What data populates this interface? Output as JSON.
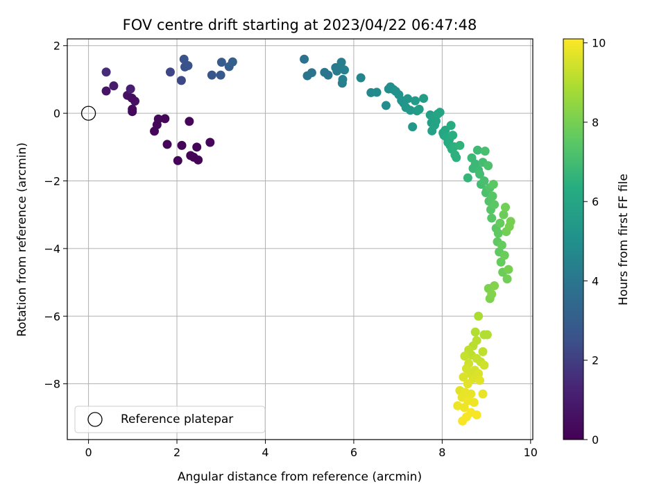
{
  "chart_data": {
    "type": "scatter",
    "title": "FOV centre drift starting at 2023/04/22 06:47:48",
    "xlabel": "Angular distance from reference (arcmin)",
    "ylabel": "Rotation from reference (arcmin)",
    "xlim": [
      -0.48,
      10.05
    ],
    "ylim": [
      -9.65,
      2.2
    ],
    "xticks": [
      "0",
      "2",
      "4",
      "6",
      "8",
      "10"
    ],
    "yticks": [
      "−8",
      "−6",
      "−4",
      "−2",
      "0",
      "2"
    ],
    "grid": true,
    "colormap": "viridis",
    "colorbar": {
      "label": "Hours from first FF file",
      "range": [
        0,
        10.1
      ],
      "ticks": [
        "0",
        "2",
        "4",
        "6",
        "8",
        "10"
      ]
    },
    "legend": {
      "position": "lower-left",
      "entries": [
        "Reference platepar"
      ]
    },
    "reference_point": {
      "x": 0.0,
      "y": 0.0
    },
    "points": [
      [
        0.4,
        1.22,
        1.5
      ],
      [
        0.4,
        0.66,
        0.7
      ],
      [
        0.57,
        0.81,
        1.0
      ],
      [
        0.88,
        0.53,
        0.6
      ],
      [
        0.95,
        0.72,
        1.1
      ],
      [
        1.05,
        0.36,
        0.6
      ],
      [
        0.98,
        0.45,
        0.5
      ],
      [
        0.99,
        0.12,
        0.4
      ],
      [
        0.99,
        0.05,
        0.3
      ],
      [
        1.49,
        -0.53,
        0.2
      ],
      [
        1.55,
        -0.34,
        0.3
      ],
      [
        1.58,
        -0.17,
        0.3
      ],
      [
        1.73,
        -0.16,
        0.2
      ],
      [
        1.78,
        -0.92,
        0.1
      ],
      [
        2.02,
        -1.4,
        0.1
      ],
      [
        2.11,
        -0.95,
        0.1
      ],
      [
        2.28,
        -0.24,
        0.2
      ],
      [
        2.31,
        -1.25,
        0.1
      ],
      [
        2.38,
        -1.3,
        0.1
      ],
      [
        2.45,
        -1.0,
        0.1
      ],
      [
        2.48,
        -1.38,
        0.1
      ],
      [
        2.75,
        -0.86,
        0.2
      ],
      [
        1.85,
        1.22,
        2.2
      ],
      [
        2.1,
        0.97,
        2.3
      ],
      [
        2.16,
        1.6,
        2.6
      ],
      [
        2.18,
        1.37,
        2.5
      ],
      [
        2.25,
        1.41,
        2.6
      ],
      [
        2.79,
        1.13,
        2.7
      ],
      [
        2.99,
        1.13,
        2.8
      ],
      [
        3.01,
        1.51,
        2.9
      ],
      [
        3.18,
        1.38,
        3.0
      ],
      [
        3.26,
        1.52,
        3.1
      ],
      [
        4.88,
        1.6,
        3.8
      ],
      [
        4.95,
        1.11,
        3.9
      ],
      [
        5.05,
        1.2,
        3.9
      ],
      [
        5.34,
        1.21,
        4.0
      ],
      [
        5.42,
        1.13,
        4.0
      ],
      [
        5.59,
        1.35,
        4.1
      ],
      [
        5.62,
        1.25,
        4.2
      ],
      [
        5.7,
        1.4,
        4.2
      ],
      [
        5.72,
        1.51,
        4.3
      ],
      [
        5.74,
        0.89,
        4.3
      ],
      [
        5.75,
        1.0,
        4.4
      ],
      [
        5.79,
        1.28,
        4.4
      ],
      [
        6.16,
        1.05,
        4.6
      ],
      [
        6.39,
        0.61,
        4.7
      ],
      [
        6.52,
        0.62,
        4.8
      ],
      [
        6.73,
        0.23,
        4.9
      ],
      [
        6.79,
        0.72,
        4.9
      ],
      [
        6.83,
        0.78,
        5.0
      ],
      [
        6.9,
        0.7,
        5.0
      ],
      [
        6.95,
        0.65,
        5.1
      ],
      [
        7.02,
        0.55,
        5.1
      ],
      [
        7.08,
        0.38,
        5.2
      ],
      [
        7.13,
        0.3,
        5.2
      ],
      [
        7.18,
        0.17,
        5.3
      ],
      [
        7.22,
        0.43,
        5.3
      ],
      [
        7.28,
        0.09,
        5.4
      ],
      [
        7.33,
        -0.4,
        5.4
      ],
      [
        7.39,
        0.37,
        5.5
      ],
      [
        7.43,
        0.07,
        5.5
      ],
      [
        7.48,
        0.12,
        5.6
      ],
      [
        7.58,
        0.44,
        5.6
      ],
      [
        7.73,
        -0.05,
        5.7
      ],
      [
        7.76,
        -0.28,
        5.7
      ],
      [
        7.77,
        -0.52,
        5.8
      ],
      [
        7.8,
        -0.12,
        5.8
      ],
      [
        7.83,
        -0.35,
        5.9
      ],
      [
        7.86,
        -0.23,
        5.9
      ],
      [
        7.9,
        -0.02,
        6.0
      ],
      [
        7.95,
        0.03,
        6.0
      ],
      [
        8.02,
        -0.58,
        6.1
      ],
      [
        8.04,
        -0.65,
        6.1
      ],
      [
        8.07,
        -0.5,
        6.1
      ],
      [
        8.1,
        -0.71,
        6.2
      ],
      [
        8.13,
        -0.86,
        6.2
      ],
      [
        8.16,
        -0.78,
        6.3
      ],
      [
        8.18,
        -0.95,
        6.3
      ],
      [
        8.2,
        -0.36,
        6.3
      ],
      [
        8.22,
        -1.06,
        6.4
      ],
      [
        8.24,
        -0.65,
        6.4
      ],
      [
        8.27,
        -0.99,
        6.5
      ],
      [
        8.29,
        -1.23,
        6.5
      ],
      [
        8.32,
        -1.31,
        6.5
      ],
      [
        8.4,
        -0.95,
        6.6
      ],
      [
        8.58,
        -1.91,
        6.7
      ],
      [
        8.67,
        -1.32,
        6.8
      ],
      [
        8.7,
        -1.63,
        6.8
      ],
      [
        8.75,
        -1.5,
        6.8
      ],
      [
        8.8,
        -1.09,
        6.9
      ],
      [
        8.82,
        -1.68,
        6.9
      ],
      [
        8.85,
        -1.8,
        7.0
      ],
      [
        8.88,
        -2.1,
        7.0
      ],
      [
        8.92,
        -1.45,
        7.0
      ],
      [
        8.95,
        -2.0,
        7.1
      ],
      [
        8.97,
        -1.12,
        7.1
      ],
      [
        8.99,
        -2.35,
        7.2
      ],
      [
        9.01,
        -2.27,
        7.2
      ],
      [
        9.04,
        -1.55,
        7.2
      ],
      [
        9.06,
        -2.6,
        7.3
      ],
      [
        9.08,
        -2.2,
        7.3
      ],
      [
        9.1,
        -2.85,
        7.4
      ],
      [
        9.12,
        -3.1,
        7.4
      ],
      [
        9.14,
        -2.45,
        7.4
      ],
      [
        9.16,
        -2.1,
        7.5
      ],
      [
        9.18,
        -2.7,
        7.5
      ],
      [
        9.22,
        -3.4,
        7.5
      ],
      [
        9.25,
        -3.8,
        7.6
      ],
      [
        9.27,
        -3.55,
        7.6
      ],
      [
        9.29,
        -4.1,
        7.6
      ],
      [
        9.31,
        -3.25,
        7.7
      ],
      [
        9.33,
        -4.4,
        7.7
      ],
      [
        9.35,
        -3.9,
        7.7
      ],
      [
        9.37,
        -4.7,
        7.8
      ],
      [
        9.39,
        -3.0,
        7.8
      ],
      [
        9.41,
        -4.2,
        7.8
      ],
      [
        9.43,
        -2.78,
        7.9
      ],
      [
        9.45,
        -3.5,
        7.9
      ],
      [
        9.47,
        -4.9,
        7.9
      ],
      [
        9.5,
        -4.62,
        8.0
      ],
      [
        9.52,
        -3.35,
        8.0
      ],
      [
        9.55,
        -3.2,
        8.0
      ],
      [
        9.05,
        -5.18,
        8.1
      ],
      [
        9.08,
        -5.48,
        8.1
      ],
      [
        9.12,
        -5.35,
        8.2
      ],
      [
        9.18,
        -5.1,
        8.2
      ],
      [
        8.82,
        -6.0,
        8.9
      ],
      [
        8.75,
        -6.47,
        9.0
      ],
      [
        8.95,
        -6.55,
        9.0
      ],
      [
        9.02,
        -6.55,
        9.0
      ],
      [
        8.78,
        -6.72,
        9.1
      ],
      [
        8.7,
        -6.88,
        9.1
      ],
      [
        8.6,
        -7.0,
        9.2
      ],
      [
        8.92,
        -7.05,
        9.2
      ],
      [
        8.66,
        -7.15,
        9.2
      ],
      [
        8.51,
        -7.18,
        9.3
      ],
      [
        8.78,
        -7.25,
        9.3
      ],
      [
        8.87,
        -7.35,
        9.3
      ],
      [
        8.6,
        -7.4,
        9.4
      ],
      [
        8.95,
        -7.45,
        9.4
      ],
      [
        8.55,
        -7.55,
        9.5
      ],
      [
        8.74,
        -7.6,
        9.5
      ],
      [
        8.64,
        -7.7,
        9.5
      ],
      [
        8.82,
        -7.7,
        9.6
      ],
      [
        8.48,
        -7.8,
        9.6
      ],
      [
        8.7,
        -7.85,
        9.6
      ],
      [
        8.85,
        -7.9,
        9.7
      ],
      [
        8.58,
        -8.0,
        9.7
      ],
      [
        8.4,
        -8.2,
        9.7
      ],
      [
        8.52,
        -8.25,
        9.8
      ],
      [
        8.65,
        -8.3,
        9.8
      ],
      [
        8.92,
        -8.3,
        9.8
      ],
      [
        8.45,
        -8.4,
        9.8
      ],
      [
        8.58,
        -8.5,
        9.9
      ],
      [
        8.72,
        -8.55,
        9.9
      ],
      [
        8.35,
        -8.65,
        9.9
      ],
      [
        8.5,
        -8.7,
        9.9
      ],
      [
        8.65,
        -8.85,
        10.0
      ],
      [
        8.78,
        -8.92,
        10.0
      ],
      [
        8.55,
        -8.98,
        10.0
      ],
      [
        8.46,
        -9.1,
        10.0
      ]
    ]
  }
}
